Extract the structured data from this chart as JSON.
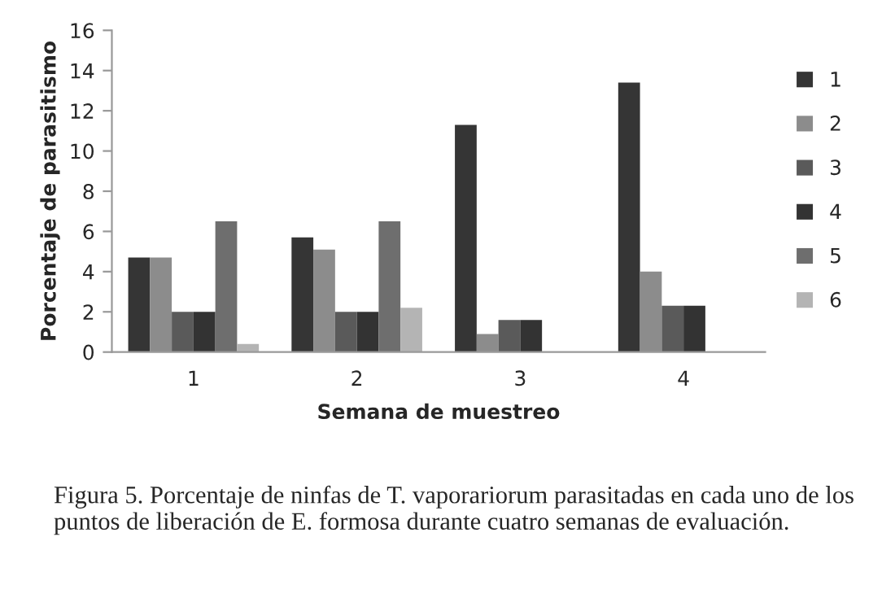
{
  "chart_data": {
    "type": "bar",
    "xlabel": "Semana de muestreo",
    "ylabel": "Porcentaje de parasitismo",
    "categories": [
      "1",
      "2",
      "3",
      "4"
    ],
    "series": [
      {
        "name": "1",
        "color": "#353535",
        "values": [
          4.7,
          5.7,
          11.3,
          13.4
        ]
      },
      {
        "name": "2",
        "color": "#8c8c8c",
        "values": [
          4.7,
          5.1,
          0.9,
          4.0
        ]
      },
      {
        "name": "3",
        "color": "#5a5a5a",
        "values": [
          2.0,
          2.0,
          1.6,
          2.3
        ]
      },
      {
        "name": "4",
        "color": "#333333",
        "values": [
          2.0,
          2.0,
          1.6,
          2.3
        ]
      },
      {
        "name": "5",
        "color": "#6e6e6e",
        "values": [
          6.5,
          6.5,
          null,
          null
        ]
      },
      {
        "name": "6",
        "color": "#b4b4b4",
        "values": [
          0.4,
          2.2,
          null,
          null
        ]
      }
    ],
    "ylim": [
      0,
      16
    ],
    "yticks": [
      0,
      2,
      4,
      6,
      8,
      10,
      12,
      14,
      16
    ],
    "grid": false,
    "legend": "right",
    "annotations": [
      "Figura 5. Porcentaje de ninfas de T. vaporariorum parasitadas en cada uno de los puntos de liberación de E. formosa durante cuatro semanas de evaluación."
    ]
  }
}
